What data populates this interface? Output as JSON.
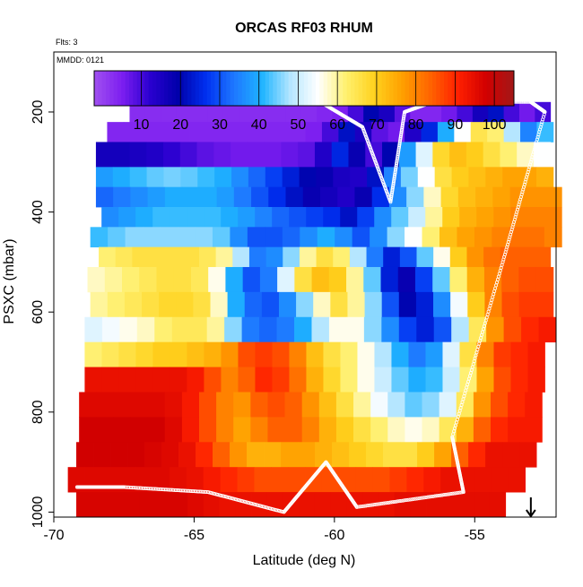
{
  "chart_data": {
    "type": "heatmap",
    "title": "ORCAS RF03 RHUM",
    "subtitle": "Flts: 3",
    "annotation": "MMDD: 0121",
    "xlabel": "Latitude (deg N)",
    "ylabel": "PSXC (mbar)",
    "xlim": [
      -70,
      -52.1
    ],
    "ylim": [
      1010,
      80
    ],
    "x_ticks": [
      -70,
      -65,
      -60,
      -55
    ],
    "y_ticks": [
      200,
      400,
      600,
      800,
      1000
    ],
    "colorbar": {
      "ticks": [
        10,
        20,
        30,
        40,
        50,
        60,
        70,
        80,
        90,
        100
      ],
      "range": [
        -2,
        105
      ],
      "colors": [
        "#a050f0",
        "#7c1ef0",
        "#2a00d0",
        "#0000aa",
        "#0030f0",
        "#1e78ff",
        "#1eb4ff",
        "#b4e6ff",
        "#ffffff",
        "#fff06e",
        "#ffd21e",
        "#ffa000",
        "#ff6400",
        "#ff2000",
        "#d20000",
        "#a21818"
      ]
    },
    "series": [
      {
        "values": [
          [
            -69.2,
            -52.5,
            5,
            5,
            5,
            5,
            5,
            5,
            5,
            5,
            5,
            5,
            6,
            6,
            7,
            12,
            25,
            35,
            15,
            8,
            18,
            30,
            40,
            28,
            20,
            10,
            38
          ]
        ],
        "p": 200
      },
      {
        "values": [
          [
            -69.4,
            -52.4,
            5,
            5,
            5,
            5,
            5,
            5,
            5,
            5,
            5,
            5,
            6,
            6,
            8,
            15,
            28,
            20,
            10,
            25,
            35,
            45,
            55,
            65,
            62,
            55,
            40
          ]
        ],
        "p": 250
      }
    ],
    "flight_track": [
      [
        -67.5,
        180
      ],
      [
        -62,
        180
      ],
      [
        -60.5,
        180
      ],
      [
        -59,
        230
      ],
      [
        -58,
        380
      ],
      [
        -57.5,
        200
      ],
      [
        -56.5,
        180
      ],
      [
        -53,
        180
      ],
      [
        -52.5,
        200
      ],
      [
        -54,
        500
      ],
      [
        -55.8,
        850
      ],
      [
        -55.4,
        960
      ],
      [
        -59.2,
        990
      ],
      [
        -60.3,
        900
      ],
      [
        -61.8,
        1000
      ],
      [
        -64.5,
        960
      ],
      [
        -67.5,
        950
      ],
      [
        -69.2,
        950
      ]
    ],
    "latest_latitude": -53
  }
}
